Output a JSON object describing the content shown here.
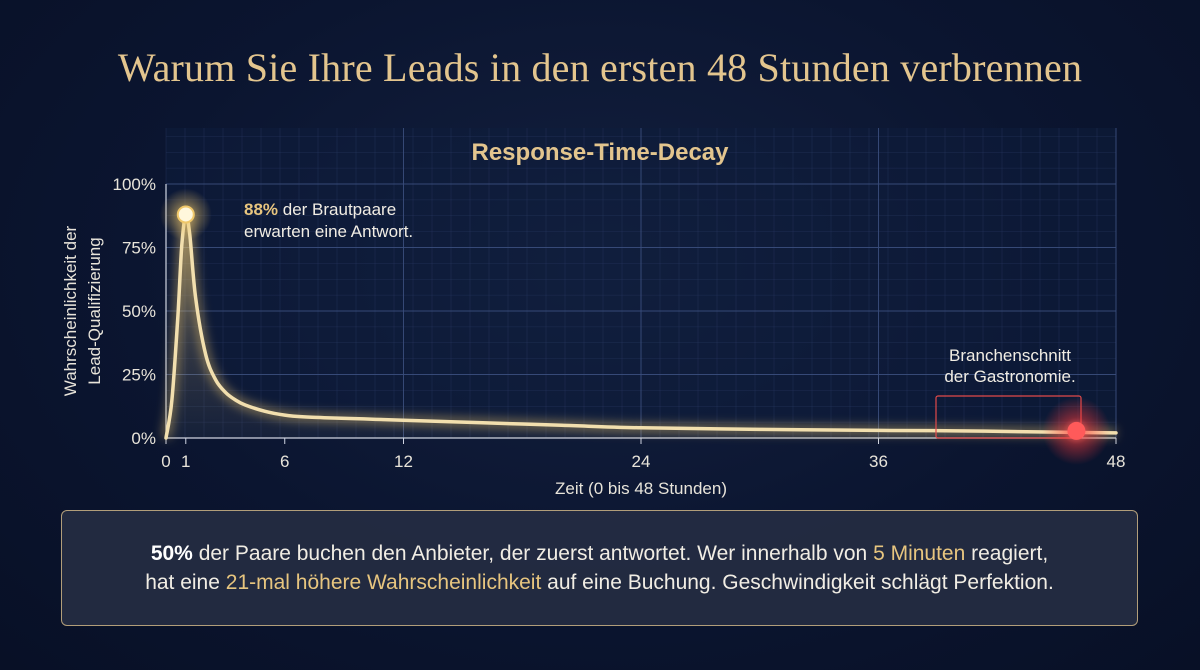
{
  "headline": "Warum Sie Ihre Leads in den ersten 48 Stunden verbrennen",
  "chart_data": {
    "type": "line",
    "title": "Response-Time-Decay",
    "xlabel": "Zeit (0 bis 48 Stunden)",
    "ylabel": [
      "Wahrscheinlichkeit der",
      "Lead-Qualifizierung"
    ],
    "x_ticks": [
      0,
      1,
      6,
      12,
      24,
      36,
      48
    ],
    "x_tick_labels": [
      "0",
      "1",
      "6",
      "12",
      "24",
      "36",
      "48"
    ],
    "y_ticks": [
      0,
      25,
      50,
      75,
      100
    ],
    "y_tick_labels": [
      "0%",
      "25%",
      "50%",
      "75%",
      "100%"
    ],
    "xlim": [
      0,
      48
    ],
    "ylim": [
      0,
      100
    ],
    "grid": true,
    "series": [
      {
        "x": [
          0,
          0.3,
          0.6,
          0.8,
          1.0,
          1.2,
          1.5,
          2.0,
          2.5,
          3.0,
          3.5,
          4.0,
          5.0,
          6.0,
          7.0,
          8.0,
          10.0,
          12.0,
          16.0,
          20.0,
          24.0,
          30.0,
          36.0,
          40.0,
          44.0,
          46.0,
          48.0
        ],
        "y": [
          0,
          15,
          48,
          76,
          88,
          80,
          55,
          33,
          23,
          18,
          15,
          13,
          10.5,
          9,
          8.3,
          8,
          7.5,
          7,
          6,
          5,
          4,
          3.4,
          3,
          2.8,
          2.4,
          2.2,
          2.0
        ]
      }
    ],
    "annotations": [
      {
        "x": 1,
        "y": 88,
        "highlight": "88%",
        "lines": [
          "der Brautpaare",
          "erwarten eine Antwort."
        ]
      },
      {
        "x": 46,
        "y": 2,
        "lines": [
          "Branchenschnitt",
          "der Gastronomie."
        ]
      }
    ],
    "colors": {
      "line": "#f2dfae",
      "peak_point": "#fff7dc",
      "industry_point": "#ff5a5a",
      "title": "#e3c58e",
      "grid": "#2b3d66"
    }
  },
  "callout": {
    "line1": {
      "b1": "50%",
      "t1": " der Paare buchen den Anbieter, der zuerst antwortet. Wer innerhalb von ",
      "h1": "5 Minuten",
      "t2": " reagiert,"
    },
    "line2": {
      "t1": "hat eine ",
      "h1": "21-mal höhere Wahrscheinlichkeit",
      "t2": " auf eine Buchung. Geschwindigkeit schlägt Perfektion."
    }
  }
}
